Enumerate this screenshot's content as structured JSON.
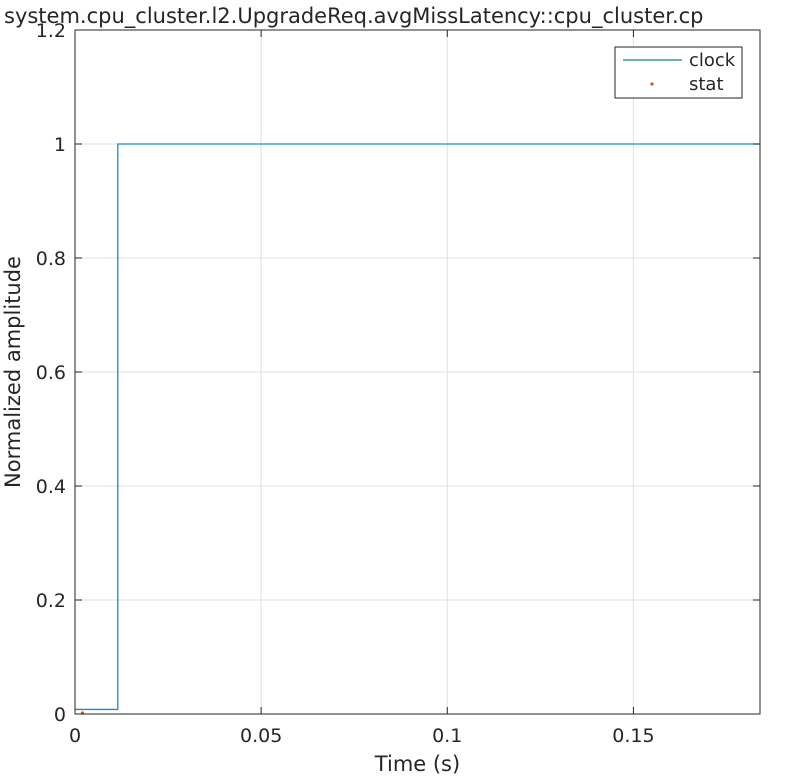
{
  "chart_data": {
    "type": "line",
    "title": "system.cpu_cluster.l2.UpgradeReq.avgMissLatency::cpu_cluster.cp",
    "xlabel": "Time (s)",
    "ylabel": "Normalized amplitude",
    "xlim": [
      0,
      0.184
    ],
    "ylim": [
      0,
      1.2
    ],
    "xticks": [
      0,
      0.05,
      0.1,
      0.15
    ],
    "xtick_labels": [
      "0",
      "0.05",
      "0.1",
      "0.15"
    ],
    "yticks": [
      0,
      0.2,
      0.4,
      0.6,
      0.8,
      1,
      1.2
    ],
    "ytick_labels": [
      "0",
      "0.2",
      "0.4",
      "0.6",
      "0.8",
      "1",
      "1.2"
    ],
    "grid": true,
    "legend_position": "top-right",
    "series": [
      {
        "name": "clock",
        "style": "step-line",
        "color": "#1f8ac9",
        "legend_color": "#138a7a",
        "x": [
          0,
          0.0115,
          0.0115,
          0.184
        ],
        "y": [
          0.008,
          0.008,
          1,
          1
        ]
      },
      {
        "name": "stat",
        "style": "marker",
        "color": "#d95319",
        "x": [
          0.002
        ],
        "y": [
          0
        ]
      }
    ]
  }
}
